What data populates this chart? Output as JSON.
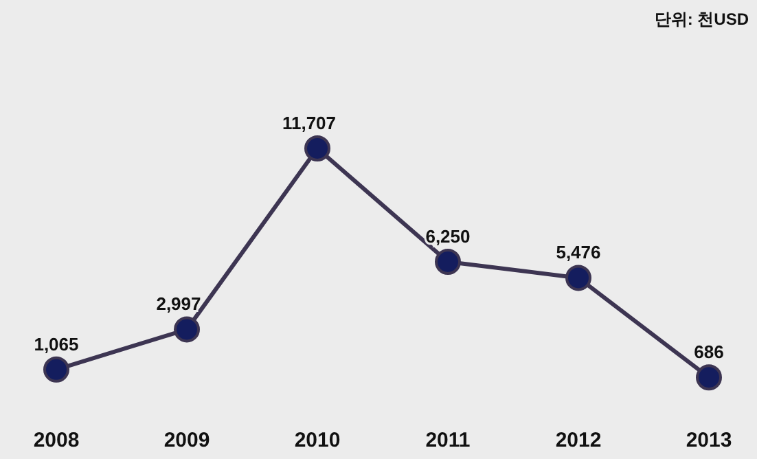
{
  "chart_data": {
    "type": "line",
    "categories": [
      "2008",
      "2009",
      "2010",
      "2011",
      "2012",
      "2013"
    ],
    "values": [
      1065,
      2997,
      11707,
      6250,
      5476,
      686
    ],
    "color": "#141d5e",
    "value_labels": [
      "1,065",
      "2,997",
      "11,707",
      "6,250",
      "5,476",
      "686"
    ],
    "marker": "circle",
    "annotations": [
      "단위: 천USD"
    ]
  }
}
